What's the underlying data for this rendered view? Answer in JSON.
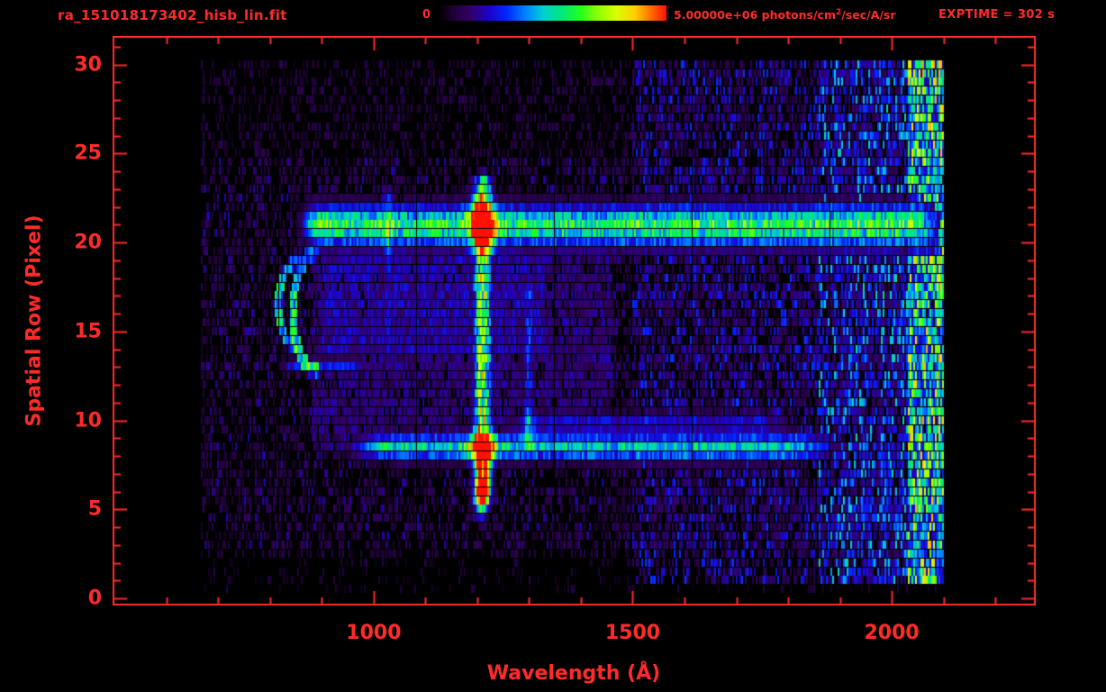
{
  "header": {
    "exptime": "EXPTIME = 302 s",
    "exptime_s": 302
  },
  "colorbar": {
    "min_label": "0",
    "max_prefix": "5.00000e+06 photons/cm",
    "max_sup": "2",
    "max_suffix": "/sec/A/sr",
    "min_value": 0,
    "max_value": 5000000
  },
  "chart_data": {
    "type": "heatmap",
    "title": "ra_151018173402_hisb_lin.fit",
    "xlabel": "Wavelength (Å)",
    "ylabel": "Spatial Row (Pixel)",
    "x_range": [
      496,
      2278
    ],
    "y_range": [
      -0.4,
      31.6
    ],
    "x_ticks": [
      1000,
      1500,
      2000
    ],
    "x_minor_step": 100,
    "x_major_step": 500,
    "y_ticks": [
      0,
      5,
      10,
      15,
      20,
      25,
      30
    ],
    "y_minor_step": 1,
    "data_x_extent": [
      668,
      2100
    ],
    "data_row_extent": [
      0.5,
      30.4
    ],
    "axis_color": "#ff2b2b",
    "background": "#000000",
    "colorbar": {
      "min": 0,
      "max": 5000000,
      "units": "photons/cm2/sec/A/sr",
      "colormap": "rainbow"
    },
    "colormap_stops": [
      [
        0.0,
        "#000000"
      ],
      [
        0.06,
        "#1d0033"
      ],
      [
        0.14,
        "#320066"
      ],
      [
        0.22,
        "#1e00c8"
      ],
      [
        0.3,
        "#0028ff"
      ],
      [
        0.38,
        "#0080ff"
      ],
      [
        0.46,
        "#00d0d0"
      ],
      [
        0.54,
        "#00e87a"
      ],
      [
        0.62,
        "#20ff20"
      ],
      [
        0.7,
        "#90ff00"
      ],
      [
        0.78,
        "#d8ff00"
      ],
      [
        0.86,
        "#ffd000"
      ],
      [
        0.93,
        "#ff7000"
      ],
      [
        1.0,
        "#ff1000"
      ]
    ],
    "features": [
      {
        "kind": "noise",
        "x": [
          668,
          2100
        ],
        "rows": [
          2.2,
          30.5
        ],
        "density": 0.38,
        "level": [
          0.03,
          0.13
        ]
      },
      {
        "kind": "noise",
        "x": [
          668,
          2100
        ],
        "rows": [
          0.4,
          2.2
        ],
        "density": 0.15,
        "level": [
          0.03,
          0.1
        ]
      },
      {
        "kind": "noise",
        "x": [
          668,
          2100
        ],
        "rows": [
          3.0,
          24.5
        ],
        "density": 0.22,
        "level": [
          0.07,
          0.22
        ]
      },
      {
        "kind": "noise",
        "x": [
          1500,
          2100
        ],
        "rows": [
          1.0,
          30.5
        ],
        "density": 0.45,
        "level": [
          0.08,
          0.32
        ]
      },
      {
        "kind": "noise",
        "x": [
          1860,
          2100
        ],
        "rows": [
          1.0,
          30.5
        ],
        "density": 0.55,
        "level": [
          0.12,
          0.5
        ]
      },
      {
        "kind": "noise",
        "x": [
          2030,
          2100
        ],
        "rows": [
          1.0,
          30.5
        ],
        "density": 0.92,
        "level": [
          0.2,
          0.9
        ]
      },
      {
        "kind": "patch",
        "x": [
          880,
          1460
        ],
        "rows": [
          8.3,
          19.6
        ],
        "density": 0.8,
        "level": 0.15
      },
      {
        "kind": "patch",
        "x": [
          900,
          1330
        ],
        "rows": [
          13.6,
          19.2
        ],
        "density": 0.85,
        "level": 0.19
      },
      {
        "kind": "hband",
        "x": [
          860,
          2098
        ],
        "rows": [
          19.7,
          22.1
        ],
        "level": 0.55,
        "peak_x": 1210,
        "edge_fade": 50
      },
      {
        "kind": "hband",
        "x": [
          930,
          1910
        ],
        "rows": [
          7.7,
          9.2
        ],
        "level": 0.45,
        "peak_x": 1210,
        "edge_fade": 90
      },
      {
        "kind": "hband",
        "x": [
          1235,
          1830
        ],
        "rows": [
          9.3,
          10.5
        ],
        "level": 0.2,
        "edge_fade": 80
      },
      {
        "kind": "hband",
        "x": [
          805,
          1000
        ],
        "rows": [
          12.7,
          13.5
        ],
        "level": 0.26,
        "edge_fade": 40
      },
      {
        "kind": "vline",
        "x": [
          1193,
          1227
        ],
        "rows": [
          4.8,
          24.1
        ],
        "level": 0.65
      },
      {
        "kind": "vline",
        "x": [
          1289,
          1311
        ],
        "rows": [
          8.0,
          18.6
        ],
        "level": 0.24
      },
      {
        "kind": "vline",
        "x": [
          1019,
          1037
        ],
        "rows": [
          13.0,
          23.6
        ],
        "level": 0.2
      },
      {
        "kind": "blob",
        "x": 1209,
        "row": 6.1,
        "sx": 13,
        "sy": 1.4,
        "level": 0.7
      },
      {
        "kind": "blob",
        "x": 1209,
        "row": 8.4,
        "sx": 18,
        "sy": 0.9,
        "level": 0.4
      },
      {
        "kind": "blob",
        "x": 1209,
        "row": 21.0,
        "sx": 20,
        "sy": 1.1,
        "level": 0.45
      },
      {
        "kind": "blob",
        "x": 885,
        "row": 21.0,
        "sx": 28,
        "sy": 0.9,
        "level": 0.3
      },
      {
        "kind": "arc",
        "cx": 856,
        "cy": 16.5,
        "rx": 40,
        "ry": 2.5,
        "level": 0.5
      },
      {
        "kind": "arc",
        "cx": 893,
        "cy": 16.1,
        "rx": 50,
        "ry": 3.4,
        "level": 0.48
      }
    ],
    "annotations": [
      "bright horizontal emission band at spatial rows ~20-22 spanning ~870-2100 Å",
      "second horizontal band at spatial rows ~8-9",
      "strong vertical airglow emission line near 1210 Å spanning rows ~5-24",
      "weaker vertical lines near 1025 Å and 1300 Å",
      "curved arc (ghost) features near 815-900 Å at rows ~13-19",
      "enhanced speckle noise toward right edge of detector (λ > 1900 Å)"
    ]
  }
}
